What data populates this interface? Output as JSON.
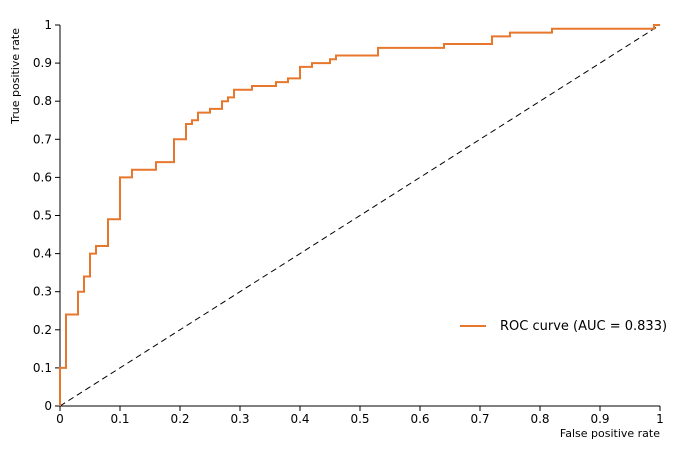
{
  "chart_data": {
    "type": "line",
    "title": "",
    "xlabel": "False positive rate",
    "ylabel": "True positive rate",
    "xlim": [
      0,
      1
    ],
    "ylim": [
      0,
      1
    ],
    "grid": false,
    "legend_position": "center-right",
    "x_ticks": [
      "0",
      "0.1",
      "0.2",
      "0.3",
      "0.4",
      "0.5",
      "0.6",
      "0.7",
      "0.8",
      "0.9",
      "1"
    ],
    "y_ticks": [
      "0",
      "0.1",
      "0.2",
      "0.3",
      "0.4",
      "0.5",
      "0.6",
      "0.7",
      "0.8",
      "0.9",
      "1"
    ],
    "series": [
      {
        "name": "ROC curve (AUC = 0.833)",
        "color": "#e8772e",
        "x": [
          0,
          0,
          0.01,
          0.01,
          0.03,
          0.03,
          0.04,
          0.04,
          0.05,
          0.05,
          0.06,
          0.06,
          0.08,
          0.08,
          0.1,
          0.1,
          0.12,
          0.12,
          0.16,
          0.16,
          0.19,
          0.19,
          0.21,
          0.21,
          0.22,
          0.22,
          0.23,
          0.23,
          0.25,
          0.25,
          0.27,
          0.27,
          0.28,
          0.28,
          0.29,
          0.29,
          0.32,
          0.32,
          0.36,
          0.36,
          0.38,
          0.38,
          0.4,
          0.4,
          0.42,
          0.42,
          0.45,
          0.45,
          0.46,
          0.46,
          0.53,
          0.53,
          0.64,
          0.64,
          0.72,
          0.72,
          0.75,
          0.75,
          0.82,
          0.82,
          0.99,
          0.99,
          1.0
        ],
        "y": [
          0,
          0.1,
          0.1,
          0.24,
          0.24,
          0.3,
          0.3,
          0.34,
          0.34,
          0.4,
          0.4,
          0.42,
          0.42,
          0.49,
          0.49,
          0.6,
          0.6,
          0.62,
          0.62,
          0.64,
          0.64,
          0.7,
          0.7,
          0.74,
          0.74,
          0.75,
          0.75,
          0.77,
          0.77,
          0.78,
          0.78,
          0.8,
          0.8,
          0.81,
          0.81,
          0.83,
          0.83,
          0.84,
          0.84,
          0.85,
          0.85,
          0.86,
          0.86,
          0.89,
          0.89,
          0.9,
          0.9,
          0.91,
          0.91,
          0.92,
          0.92,
          0.94,
          0.94,
          0.95,
          0.95,
          0.97,
          0.97,
          0.98,
          0.98,
          0.99,
          0.99,
          1.0,
          1.0
        ]
      }
    ],
    "reference_line": {
      "style": "dashed",
      "color": "#000000",
      "x": [
        0,
        1
      ],
      "y": [
        0,
        1
      ]
    }
  }
}
